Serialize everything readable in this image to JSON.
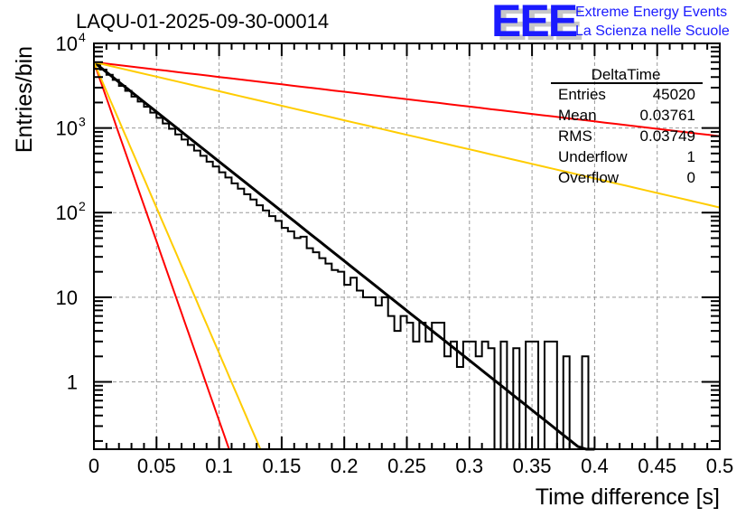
{
  "header": {
    "title": "LAQU-01-2025-09-30-00014",
    "logo_letters": "EEE",
    "logo_line1": "Extreme Energy Events",
    "logo_line2": "La Scienza nelle Scuole"
  },
  "stats_box": {
    "name": "DeltaTime",
    "rows": [
      {
        "label": "Entries",
        "value": "45020"
      },
      {
        "label": "Mean",
        "value": "0.03761"
      },
      {
        "label": "RMS",
        "value": "0.03749"
      },
      {
        "label": "Underflow",
        "value": "1"
      },
      {
        "label": "Overflow",
        "value": "0"
      }
    ]
  },
  "chart_data": {
    "type": "line",
    "title": "LAQU-01-2025-09-30-00014",
    "xlabel": "Time difference [s]",
    "ylabel": "Entries/bin",
    "xlim": [
      0,
      0.5
    ],
    "ylim": [
      0.16,
      10000
    ],
    "yscale": "log",
    "grid": true,
    "x_ticks": [
      0,
      0.05,
      0.1,
      0.15,
      0.2,
      0.25,
      0.3,
      0.35,
      0.4,
      0.45,
      0.5
    ],
    "x_tick_labels": [
      "0",
      "0.05",
      "0.1",
      "0.15",
      "0.2",
      "0.25",
      "0.3",
      "0.35",
      "0.4",
      "0.45",
      "0.5"
    ],
    "y_ticks": [
      1,
      10,
      100,
      1000,
      10000
    ],
    "y_tick_labels": [
      "1",
      "10",
      "10^2",
      "10^3",
      "10^4"
    ],
    "histogram": {
      "name": "DeltaTime",
      "bin_width": 0.005,
      "x_start": 0,
      "counts": [
        5600,
        4900,
        4250,
        3700,
        3150,
        2750,
        2350,
        2050,
        1780,
        1520,
        1320,
        1130,
        980,
        840,
        730,
        630,
        540,
        470,
        400,
        350,
        300,
        260,
        222,
        192,
        165,
        143,
        122,
        106,
        91,
        80,
        66,
        60,
        50,
        52,
        38,
        34,
        29,
        25,
        21,
        20,
        14,
        17,
        12,
        10,
        10,
        8,
        10,
        6,
        4,
        6,
        5,
        3,
        5,
        3,
        5,
        5,
        2,
        3,
        1.5,
        3,
        3,
        2,
        3,
        2.5,
        0,
        3,
        0,
        2.5,
        0,
        3,
        3,
        0,
        3,
        3,
        0,
        2,
        0,
        0,
        2,
        0,
        0,
        0,
        0,
        0,
        0,
        0,
        0,
        0,
        0,
        0,
        0,
        0,
        0,
        0,
        0,
        0,
        0,
        0,
        0,
        0
      ]
    },
    "series": [
      {
        "name": "exponential fit",
        "color": "#000000",
        "x": [
          0,
          0.4
        ],
        "y": [
          6000,
          0.12
        ]
      },
      {
        "name": "red slow",
        "color": "#ff0000",
        "x": [
          0,
          0.5
        ],
        "y": [
          6000,
          800
        ]
      },
      {
        "name": "yellow slow",
        "color": "#ffcc00",
        "x": [
          0,
          0.5
        ],
        "y": [
          6000,
          115
        ]
      },
      {
        "name": "red fast",
        "color": "#ff0000",
        "x": [
          0,
          0.108
        ],
        "y": [
          6000,
          0.16
        ]
      },
      {
        "name": "yellow fast",
        "color": "#ffcc00",
        "x": [
          0,
          0.133
        ],
        "y": [
          6000,
          0.16
        ]
      }
    ]
  }
}
